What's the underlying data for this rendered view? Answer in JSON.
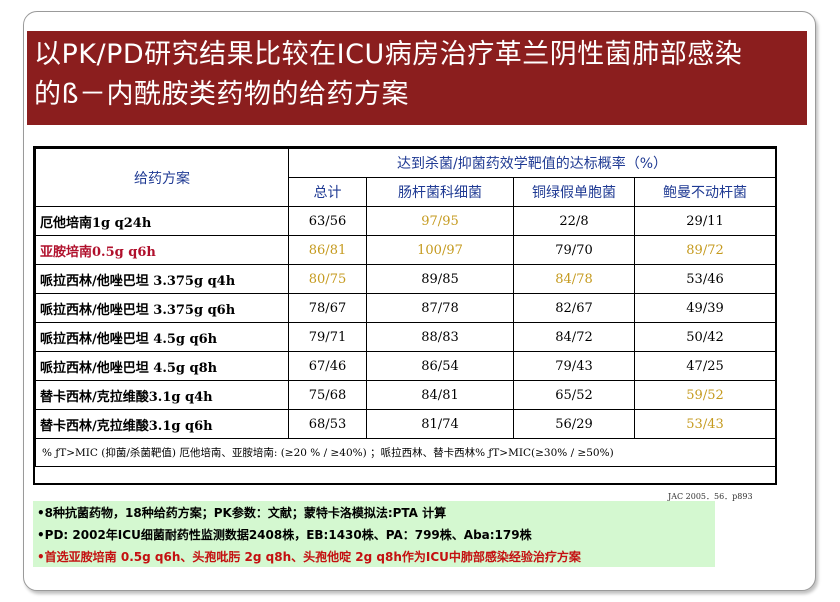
{
  "title": {
    "line1": "以PK/PD研究结果比较在ICU病房治疗革兰阴性菌肺部感染",
    "line2": "的ß－内酰胺类药物的给药方案"
  },
  "table": {
    "col_regimen": "给药方案",
    "group_header": "达到杀菌/抑菌药效学靶值的达标概率（%）",
    "sub_headers": [
      "总计",
      "肠杆菌科细菌",
      "铜绿假单胞菌",
      "鲍曼不动杆菌"
    ],
    "rows": [
      {
        "regimen": "厄他培南1g q24h",
        "cells": [
          "63/56",
          "97/95",
          "22/8",
          "29/11"
        ]
      },
      {
        "regimen": "亚胺培南0.5g q6h",
        "cells": [
          "86/81",
          "100/97",
          "79/70",
          "89/72"
        ]
      },
      {
        "regimen": "哌拉西林/他唑巴坦 3.375g q4h",
        "cells": [
          "80/75",
          "89/85",
          "84/78",
          "53/46"
        ]
      },
      {
        "regimen": "哌拉西林/他唑巴坦 3.375g q6h",
        "cells": [
          "78/67",
          "87/78",
          "82/67",
          "49/39"
        ]
      },
      {
        "regimen": "哌拉西林/他唑巴坦 4.5g q6h",
        "cells": [
          "79/71",
          "88/83",
          "84/72",
          "50/42"
        ]
      },
      {
        "regimen": "哌拉西林/他唑巴坦 4.5g q8h",
        "cells": [
          "67/46",
          "86/54",
          "79/43",
          "47/25"
        ]
      },
      {
        "regimen": "替卡西林/克拉维酸3.1g q4h",
        "cells": [
          "75/68",
          "84/81",
          "65/52",
          "59/52"
        ]
      },
      {
        "regimen": "替卡西林/克拉维酸3.1g q6h",
        "cells": [
          "68/53",
          "81/74",
          "56/29",
          "53/43"
        ]
      }
    ],
    "footnote": "% ƒT>MIC (抑菌/杀菌靶值) 厄他培南、亚胺培南: (≥20 % / ≥40%) ；哌拉西林、替卡西林% ƒT>MIC(≥30% / ≥50%)"
  },
  "reference": "JAC 2005．56．p893",
  "notes": [
    "•8种抗菌药物，18种给药方案；PK参数：文献；蒙特卡洛模拟法:PTA 计算",
    "•PD: 2002年ICU细菌耐药性监测数据2408株，EB:1430株、PA：799株、Aba:179株",
    "•首选亚胺培南 0.5g q6h、头孢吡肟 2g q8h、头孢他啶 2g q8h作为ICU中肺部感染经验治疗方案"
  ],
  "colors": {
    "title_bg": "#8b1e1e",
    "highlight_red": "#b0102c",
    "highlight_gold": "#c59a1e",
    "header_blue": "#1f3a93",
    "notes_bg": "#d4f8d0"
  }
}
